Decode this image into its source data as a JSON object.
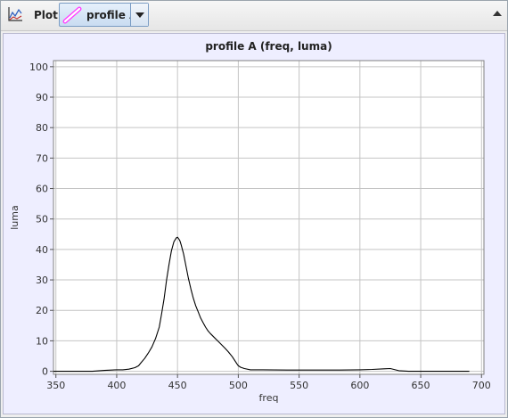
{
  "toolbar": {
    "plot_label": "Plot",
    "profile_name": "profile A",
    "profile_color": "#ff40ff",
    "plot_icon": "line-plot-icon",
    "dropdown_icon": "chevron-down-icon",
    "collapse_icon": "chevron-up-icon"
  },
  "chart_data": {
    "type": "line",
    "title": "profile A (freq, luma)",
    "xlabel": "freq",
    "ylabel": "luma",
    "xlim": [
      348,
      702
    ],
    "ylim": [
      -1,
      102
    ],
    "xticks": [
      350,
      400,
      450,
      500,
      550,
      600,
      650,
      700
    ],
    "yticks": [
      0,
      10,
      20,
      30,
      40,
      50,
      60,
      70,
      80,
      90,
      100
    ],
    "grid": true,
    "line_color": "#000000",
    "series": [
      {
        "x": [
          348,
          355,
          360,
          370,
          380,
          390,
          400,
          405,
          410,
          415,
          418,
          420,
          423,
          426,
          429,
          432,
          435,
          437,
          439,
          441,
          443,
          445,
          447,
          449,
          450,
          451,
          452,
          453,
          455,
          457,
          459,
          461,
          463,
          465,
          467,
          469,
          471,
          473,
          475,
          477,
          480,
          483,
          486,
          489,
          492,
          495,
          497,
          499,
          500,
          502,
          505,
          510,
          520,
          540,
          560,
          580,
          600,
          610,
          620,
          625,
          628,
          632,
          640,
          660,
          680,
          690
        ],
        "y": [
          0,
          0,
          0,
          0,
          0,
          0.3,
          0.5,
          0.5,
          0.7,
          1.2,
          1.8,
          2.8,
          4.2,
          6,
          8,
          10.8,
          14.5,
          19,
          24,
          30,
          35,
          39.5,
          42.5,
          43.8,
          44,
          43.5,
          42.8,
          41.5,
          38.5,
          34.5,
          30.5,
          27,
          24,
          21.5,
          19.5,
          17.5,
          16,
          14.5,
          13.3,
          12.4,
          11.2,
          10,
          8.8,
          7.6,
          6.3,
          4.8,
          3.6,
          2.4,
          1.8,
          1.3,
          0.9,
          0.5,
          0.5,
          0.4,
          0.4,
          0.4,
          0.5,
          0.6,
          0.8,
          0.9,
          0.6,
          0.2,
          0,
          0,
          0,
          0
        ]
      }
    ]
  }
}
